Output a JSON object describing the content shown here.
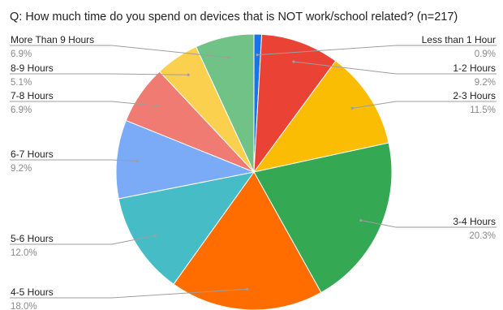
{
  "chart_data": {
    "type": "pie",
    "title": "Q: How much time do you spend on devices that is NOT work/school related? (n=217)",
    "slices": [
      {
        "label": "Less than 1 Hour",
        "percent_label": "0.9%",
        "value": 0.9,
        "color": "#1a73e8"
      },
      {
        "label": "1-2 Hours",
        "percent_label": "9.2%",
        "value": 9.2,
        "color": "#ea4335"
      },
      {
        "label": "2-3 Hours",
        "percent_label": "11.5%",
        "value": 11.5,
        "color": "#fbbc04"
      },
      {
        "label": "3-4 Hours",
        "percent_label": "20.3%",
        "value": 20.3,
        "color": "#34a853"
      },
      {
        "label": "4-5 Hours",
        "percent_label": "18.0%",
        "value": 18.0,
        "color": "#ff6d01"
      },
      {
        "label": "5-6 Hours",
        "percent_label": "12.0%",
        "value": 12.0,
        "color": "#46bdc6"
      },
      {
        "label": "6-7 Hours",
        "percent_label": "9.2%",
        "value": 9.2,
        "color": "#7baaf7"
      },
      {
        "label": "7-8 Hours",
        "percent_label": "6.9%",
        "value": 6.9,
        "color": "#f07b72"
      },
      {
        "label": "8-9 Hours",
        "percent_label": "5.1%",
        "value": 5.1,
        "color": "#fcd04f"
      },
      {
        "label": "More Than 9 Hours",
        "percent_label": "6.9%",
        "value": 6.9,
        "color": "#71c287"
      }
    ]
  }
}
